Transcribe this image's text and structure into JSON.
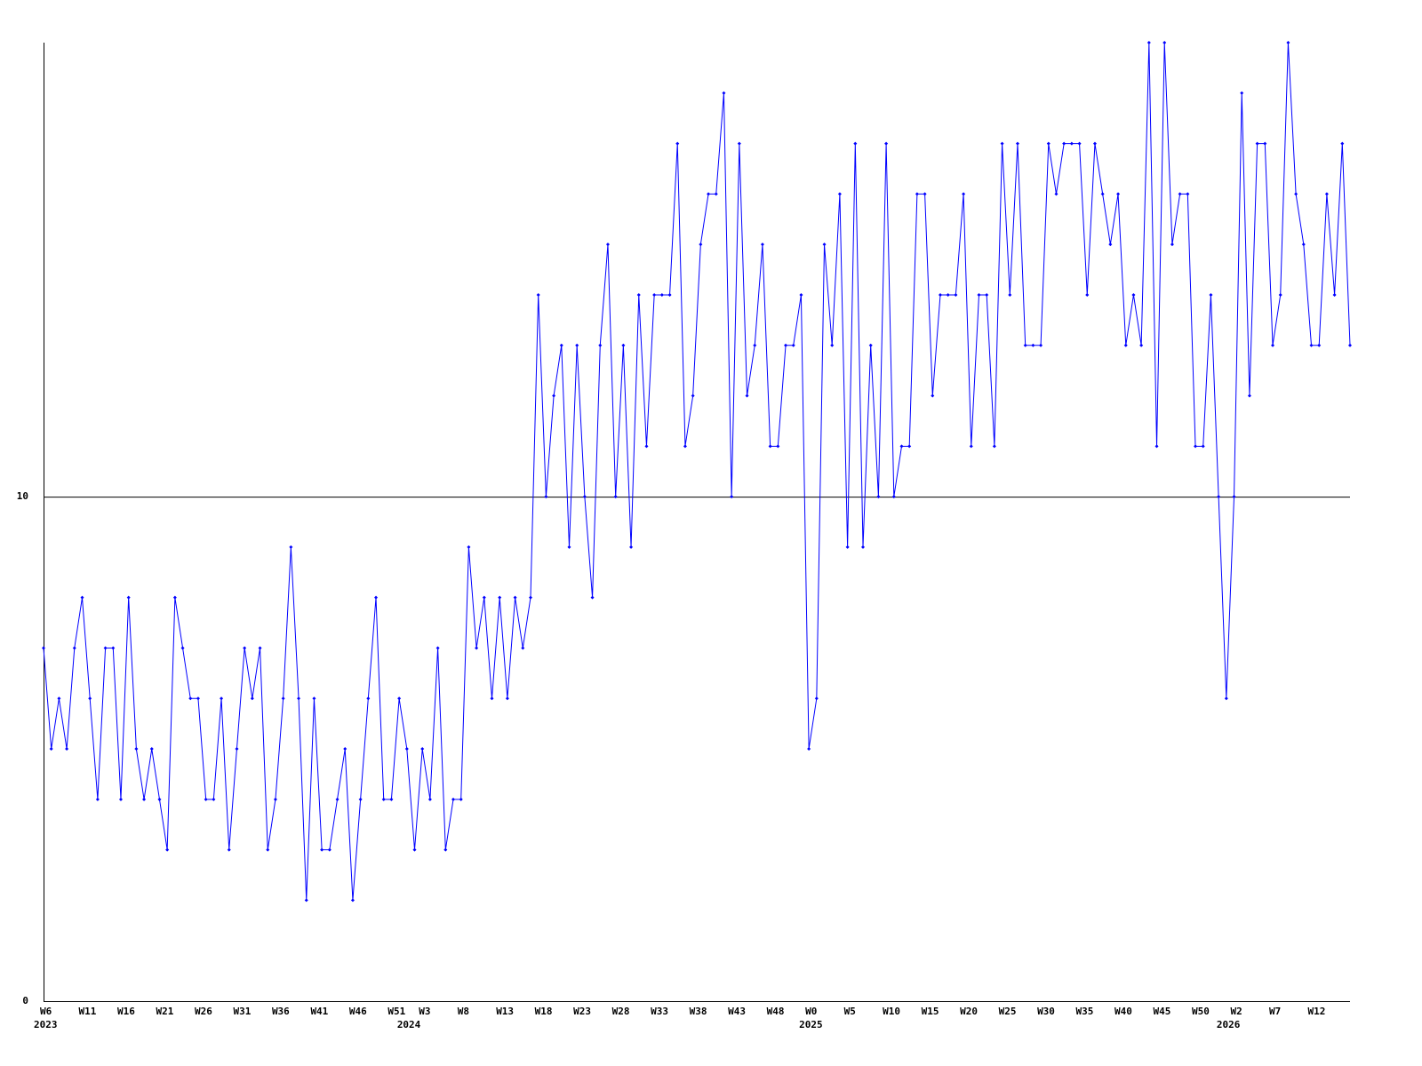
{
  "chart_data": {
    "type": "line",
    "categories": [
      "W6",
      null,
      null,
      null,
      null,
      "W11",
      null,
      null,
      null,
      null,
      "W16",
      null,
      null,
      null,
      null,
      "W21",
      null,
      null,
      null,
      null,
      "W26",
      null,
      null,
      null,
      null,
      "W31",
      null,
      null,
      null,
      null,
      "W36",
      null,
      null,
      null,
      null,
      "W41",
      null,
      null,
      null,
      null,
      "W46",
      null,
      null,
      null,
      null,
      "W51",
      null,
      null,
      null,
      "W3",
      null,
      null,
      null,
      null,
      "W8",
      null,
      null,
      null,
      null,
      "W13",
      null,
      null,
      null,
      null,
      "W18",
      null,
      null,
      null,
      null,
      "W23",
      null,
      null,
      null,
      null,
      "W28",
      null,
      null,
      null,
      null,
      "W33",
      null,
      null,
      null,
      null,
      "W38",
      null,
      null,
      null,
      null,
      "W43",
      null,
      null,
      null,
      null,
      "W48",
      null,
      null,
      null,
      null,
      "W0",
      null,
      null,
      null,
      null,
      "W5",
      null,
      null,
      null,
      null,
      "W10",
      null,
      null,
      null,
      null,
      "W15",
      null,
      null,
      null,
      null,
      "W20",
      null,
      null,
      null,
      null,
      "W25",
      null,
      null,
      null,
      null,
      "W30",
      null,
      null,
      null,
      null,
      "W35",
      null,
      null,
      null,
      null,
      "W40",
      null,
      null,
      null,
      null,
      "W45",
      null,
      null,
      null,
      null,
      "W50",
      null,
      null,
      null,
      null,
      "W2",
      null,
      null,
      null,
      null,
      "W7",
      null,
      null,
      null,
      null,
      "W12",
      null,
      null,
      null,
      null,
      null
    ],
    "category_groups": [
      "2023",
      null,
      null,
      null,
      null,
      null,
      null,
      null,
      null,
      null,
      null,
      null,
      null,
      null,
      null,
      null,
      null,
      null,
      null,
      null,
      null,
      null,
      null,
      null,
      null,
      null,
      null,
      null,
      null,
      null,
      null,
      null,
      null,
      null,
      null,
      null,
      null,
      null,
      null,
      null,
      null,
      null,
      null,
      null,
      null,
      null,
      null,
      "2024",
      null,
      null,
      null,
      null,
      null,
      null,
      null,
      null,
      null,
      null,
      null,
      null,
      null,
      null,
      null,
      null,
      null,
      null,
      null,
      null,
      null,
      null,
      null,
      null,
      null,
      null,
      null,
      null,
      null,
      null,
      null,
      null,
      null,
      null,
      null,
      null,
      null,
      null,
      null,
      null,
      null,
      null,
      null,
      null,
      null,
      null,
      null,
      null,
      null,
      null,
      null,
      "2025",
      null,
      null,
      null,
      null,
      null,
      null,
      null,
      null,
      null,
      null,
      null,
      null,
      null,
      null,
      null,
      null,
      null,
      null,
      null,
      null,
      null,
      null,
      null,
      null,
      null,
      null,
      null,
      null,
      null,
      null,
      null,
      null,
      null,
      null,
      null,
      null,
      null,
      null,
      null,
      null,
      null,
      null,
      null,
      null,
      null,
      null,
      null,
      null,
      null,
      null,
      null,
      null,
      null,
      "2026",
      null,
      null,
      null,
      null,
      null,
      null,
      null,
      null,
      null,
      null,
      null,
      null,
      null,
      null,
      null,
      null
    ],
    "series": [
      {
        "color": "#0000ff",
        "values": [
          7,
          5,
          6,
          5,
          7,
          8,
          6,
          4,
          7,
          7,
          4,
          8,
          5,
          4,
          5,
          4,
          3,
          8,
          7,
          6,
          6,
          4,
          4,
          6,
          3,
          5,
          7,
          6,
          7,
          3,
          4,
          6,
          9,
          6,
          2,
          6,
          3,
          3,
          4,
          5,
          2,
          4,
          6,
          8,
          4,
          4,
          6,
          5,
          3,
          5,
          4,
          7,
          3,
          4,
          4,
          9,
          7,
          8,
          6,
          8,
          6,
          8,
          7,
          8,
          14,
          10,
          12,
          13,
          9,
          13,
          10,
          8,
          13,
          15,
          10,
          13,
          9,
          14,
          11,
          14,
          14,
          14,
          17,
          11,
          12,
          15,
          16,
          16,
          18,
          10,
          17,
          12,
          13,
          15,
          11,
          11,
          13,
          13,
          14,
          5,
          6,
          15,
          13,
          16,
          9,
          17,
          9,
          13,
          10,
          17,
          10,
          11,
          11,
          16,
          16,
          12,
          14,
          14,
          14,
          16,
          11,
          14,
          14,
          11,
          17,
          14,
          17,
          13,
          13,
          13,
          17,
          16,
          17,
          17,
          17,
          14,
          17,
          16,
          15,
          16,
          13,
          14,
          13,
          19,
          11,
          19,
          15,
          16,
          16,
          11,
          11,
          14,
          10,
          6,
          10,
          18,
          12,
          17,
          17,
          13,
          14,
          19,
          16,
          15,
          13,
          13,
          16,
          14,
          17,
          13
        ]
      }
    ],
    "ylim": [
      0,
      19
    ],
    "yticks": [
      0,
      10
    ],
    "grid": true
  }
}
